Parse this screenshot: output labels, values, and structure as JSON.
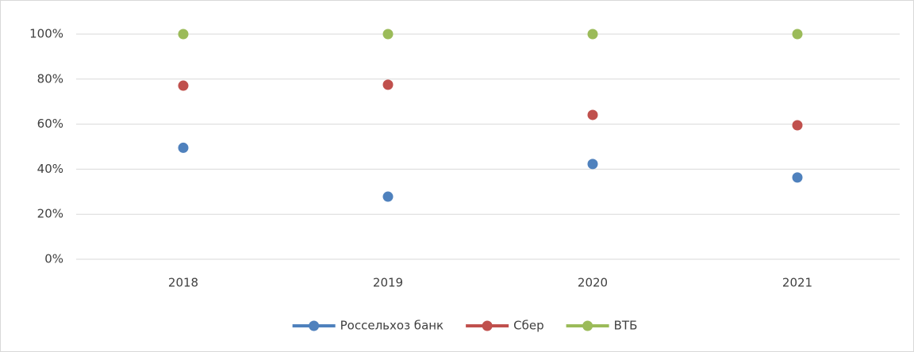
{
  "chart_data": {
    "type": "line",
    "categories": [
      "2018",
      "2019",
      "2020",
      "2021"
    ],
    "series": [
      {
        "name": "Россельхоз банк",
        "color": "#4f81bd",
        "values": [
          49.5,
          27.8,
          42.3,
          36.3
        ]
      },
      {
        "name": "Сбер",
        "color": "#c0504d",
        "values": [
          77.1,
          77.5,
          64.1,
          59.5
        ]
      },
      {
        "name": "ВТБ",
        "color": "#9bbb59",
        "values": [
          100,
          100,
          100,
          100
        ]
      }
    ],
    "ylim": [
      0,
      100
    ],
    "yticks": [
      {
        "value": 0,
        "label": "0%"
      },
      {
        "value": 20,
        "label": "20%"
      },
      {
        "value": 40,
        "label": "40%"
      },
      {
        "value": 60,
        "label": "60%"
      },
      {
        "value": 80,
        "label": "80%"
      },
      {
        "value": 100,
        "label": "100%"
      }
    ],
    "grid": true,
    "legend": "bottom"
  }
}
